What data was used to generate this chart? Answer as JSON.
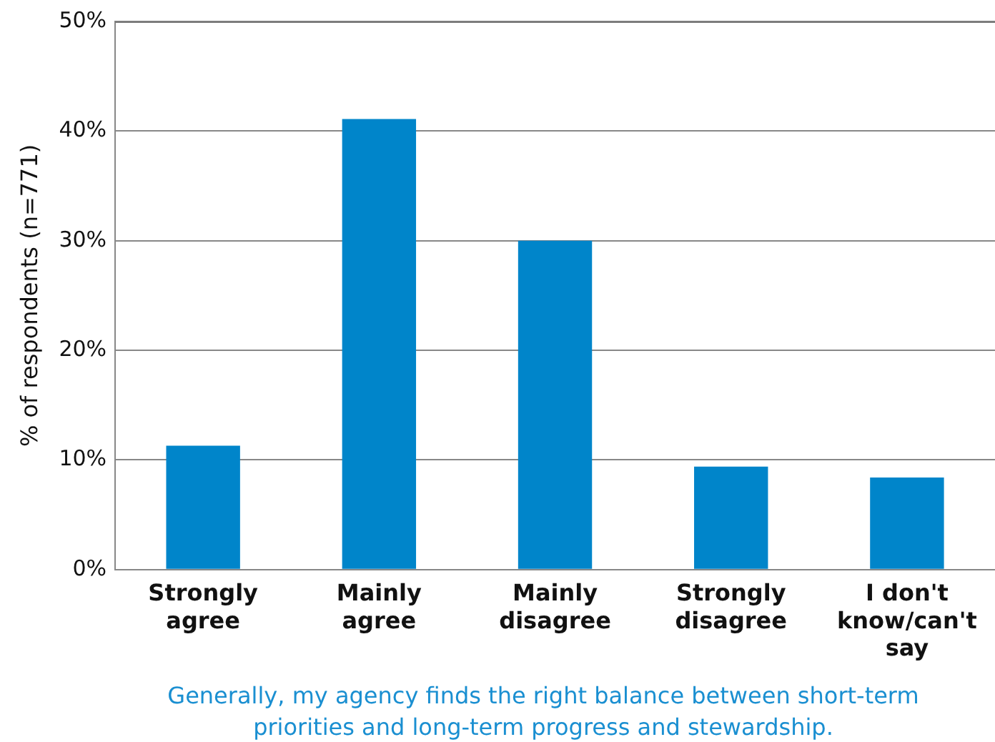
{
  "chart_data": {
    "type": "bar",
    "xlabel": "Generally, my agency finds the right balance between short-term priorities and long-term progress and stewardship.",
    "ylabel": "% of respondents (n=771)",
    "categories": [
      "Strongly agree",
      "Mainly agree",
      "Mainly disagree",
      "Strongly disagree",
      "I don't know/can't say"
    ],
    "values": [
      11.3,
      41.1,
      30,
      9.4,
      8.4
    ],
    "color": "#0085ca",
    "ylim": [
      0,
      50
    ],
    "yticks": [
      {
        "value": 0,
        "label": "0%"
      },
      {
        "value": 10,
        "label": "10%"
      },
      {
        "value": 20,
        "label": "20%"
      },
      {
        "value": 30,
        "label": "30%"
      },
      {
        "value": 40,
        "label": "40%"
      },
      {
        "value": 50,
        "label": "50%"
      }
    ],
    "grid": "y",
    "legend": false
  }
}
